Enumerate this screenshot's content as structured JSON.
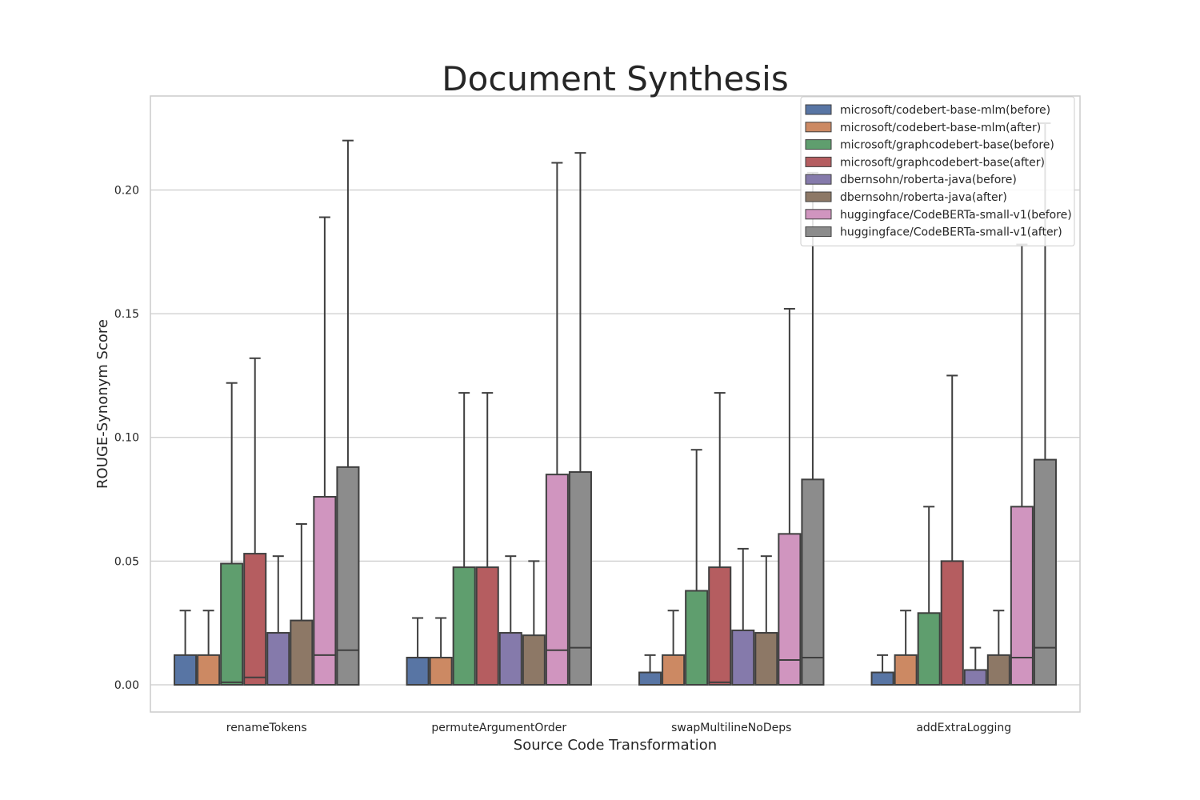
{
  "chart_data": {
    "type": "bar",
    "title": "Document Synthesis",
    "xlabel": "Source Code Transformation",
    "ylabel": "ROUGE-Synonym Score",
    "ylim": [
      -0.011,
      0.238
    ],
    "yticks": [
      0.0,
      0.05,
      0.1,
      0.15,
      0.2
    ],
    "ytick_labels": [
      "0.00",
      "0.05",
      "0.10",
      "0.15",
      "0.20"
    ],
    "grid": true,
    "legend_position": "top-right",
    "categories": [
      "renameTokens",
      "permuteArgumentOrder",
      "swapMultilineNoDeps",
      "addExtraLogging"
    ],
    "series": [
      {
        "name": "microsoft/codebert-base-mlm(before)",
        "color": "#5875a4",
        "values": [
          0.012,
          0.011,
          0.005,
          0.005
        ],
        "median": [
          0.0,
          0.0,
          0.0,
          0.0
        ],
        "whisker": [
          0.03,
          0.027,
          0.012,
          0.012
        ]
      },
      {
        "name": "microsoft/codebert-base-mlm(after)",
        "color": "#cc8963",
        "values": [
          0.012,
          0.011,
          0.012,
          0.012
        ],
        "median": [
          0.0,
          0.0,
          0.0,
          0.0
        ],
        "whisker": [
          0.03,
          0.027,
          0.03,
          0.03
        ]
      },
      {
        "name": "microsoft/graphcodebert-base(before)",
        "color": "#5f9e6e",
        "values": [
          0.049,
          0.0475,
          0.038,
          0.029
        ],
        "median": [
          0.001,
          0.0,
          0.0,
          0.0
        ],
        "whisker": [
          0.122,
          0.118,
          0.095,
          0.072
        ]
      },
      {
        "name": "microsoft/graphcodebert-base(after)",
        "color": "#b55d60",
        "values": [
          0.053,
          0.0475,
          0.0475,
          0.05
        ],
        "median": [
          0.003,
          0.0,
          0.001,
          0.0
        ],
        "whisker": [
          0.132,
          0.118,
          0.118,
          0.125
        ]
      },
      {
        "name": "dbernsohn/roberta-java(before)",
        "color": "#857aab",
        "values": [
          0.021,
          0.021,
          0.022,
          0.006
        ],
        "median": [
          0.0,
          0.0,
          0.0,
          0.0
        ],
        "whisker": [
          0.052,
          0.052,
          0.055,
          0.015
        ]
      },
      {
        "name": "dbernsohn/roberta-java(after)",
        "color": "#8d7866",
        "values": [
          0.026,
          0.02,
          0.021,
          0.012
        ],
        "median": [
          0.0,
          0.0,
          0.0,
          0.0
        ],
        "whisker": [
          0.065,
          0.05,
          0.052,
          0.03
        ]
      },
      {
        "name": "huggingface/CodeBERTa-small-v1(before)",
        "color": "#d095bf",
        "values": [
          0.076,
          0.085,
          0.061,
          0.072
        ],
        "median": [
          0.012,
          0.014,
          0.01,
          0.011
        ],
        "whisker": [
          0.189,
          0.211,
          0.152,
          0.178
        ]
      },
      {
        "name": "huggingface/CodeBERTa-small-v1(after)",
        "color": "#8c8c8c",
        "values": [
          0.088,
          0.086,
          0.083,
          0.091
        ],
        "median": [
          0.014,
          0.015,
          0.011,
          0.015
        ],
        "whisker": [
          0.22,
          0.215,
          0.207,
          0.227
        ]
      }
    ]
  }
}
